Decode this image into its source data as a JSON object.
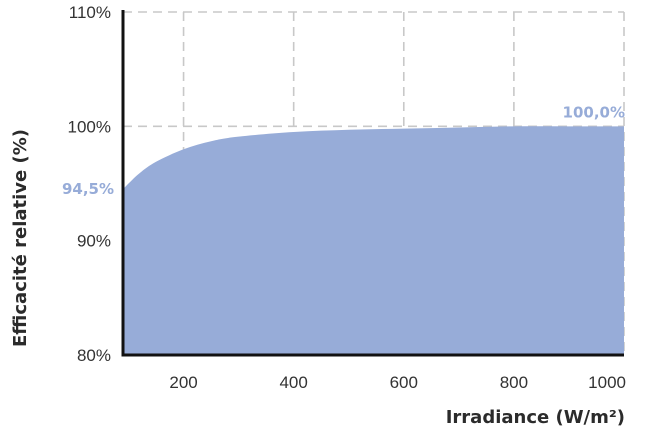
{
  "chart_data": {
    "type": "area",
    "xlabel": "Irradiance (W/m²)",
    "ylabel": "Efficacité relative (%)",
    "xlim": [
      90,
      1000
    ],
    "ylim": [
      80,
      110
    ],
    "x_ticks": [
      200,
      400,
      600,
      800,
      1000
    ],
    "y_ticks": [
      "80%",
      "90%",
      "100%",
      "110%"
    ],
    "y_tick_values": [
      80,
      90,
      100,
      110
    ],
    "grid": true,
    "fill_color": "#97acd8",
    "annotation_color": "#97acd8",
    "series": [
      {
        "x": [
          90,
          100,
          120,
          150,
          200,
          250,
          300,
          400,
          500,
          600,
          700,
          800,
          900,
          1000
        ],
        "values": [
          94.5,
          95.0,
          95.9,
          96.9,
          98.0,
          98.7,
          99.1,
          99.5,
          99.7,
          99.8,
          99.9,
          100.0,
          100.0,
          100.0
        ]
      }
    ],
    "annotations": [
      {
        "text": "94,5%",
        "x": 90,
        "y": 94.5
      },
      {
        "text": "100,0%",
        "x": 1000,
        "y": 100.0
      }
    ]
  }
}
